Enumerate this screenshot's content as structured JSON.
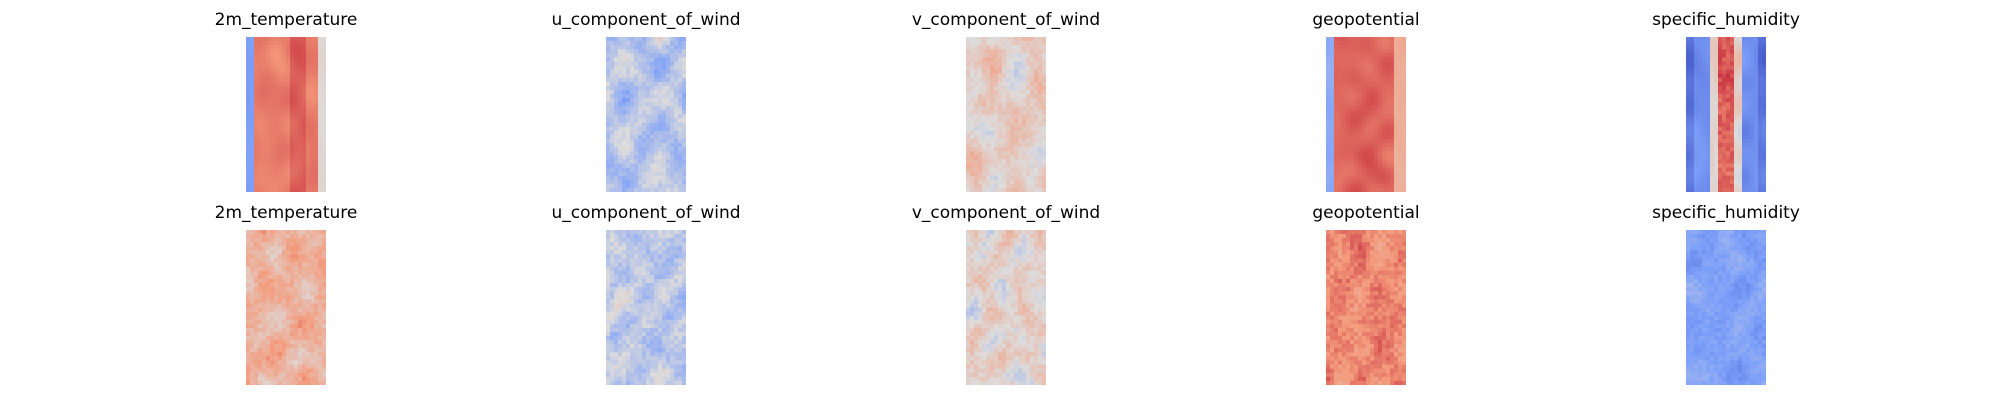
{
  "chart_data": [
    {
      "type": "heatmap",
      "title": "2m_temperature",
      "pattern": "temp",
      "seed": 11,
      "colormap": "coolwarm"
    },
    {
      "type": "heatmap",
      "title": "u_component_of_wind",
      "pattern": "uwind",
      "seed": 23,
      "colormap": "coolwarm"
    },
    {
      "type": "heatmap",
      "title": "v_component_of_wind",
      "pattern": "vwind",
      "seed": 37,
      "colormap": "coolwarm"
    },
    {
      "type": "heatmap",
      "title": "geopotential",
      "pattern": "geo",
      "seed": 41,
      "colormap": "coolwarm"
    },
    {
      "type": "heatmap",
      "title": "specific_humidity",
      "pattern": "humid",
      "seed": 53,
      "colormap": "coolwarm"
    },
    {
      "type": "heatmap",
      "title": "2m_temperature",
      "pattern": "temp2",
      "seed": 61,
      "colormap": "coolwarm"
    },
    {
      "type": "heatmap",
      "title": "u_component_of_wind",
      "pattern": "uwind2",
      "seed": 71,
      "colormap": "coolwarm"
    },
    {
      "type": "heatmap",
      "title": "v_component_of_wind",
      "pattern": "vwind2",
      "seed": 83,
      "colormap": "coolwarm"
    },
    {
      "type": "heatmap",
      "title": "geopotential",
      "pattern": "geo2",
      "seed": 97,
      "colormap": "coolwarm"
    },
    {
      "type": "heatmap",
      "title": "specific_humidity",
      "pattern": "humid2",
      "seed": 101,
      "colormap": "coolwarm"
    }
  ]
}
